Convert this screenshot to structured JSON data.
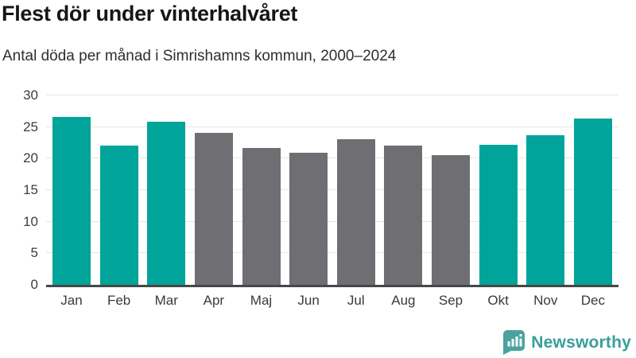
{
  "header": {
    "title": "Flest dör under vinterhalvåret",
    "subtitle": "Antal döda per månad i Simrishamns kommun, 2000–2024"
  },
  "chart_data": {
    "type": "bar",
    "title": "Flest dör under vinterhalvåret",
    "subtitle": "Antal döda per månad i Simrishamns kommun, 2000–2024",
    "categories": [
      "Jan",
      "Feb",
      "Mar",
      "Apr",
      "Maj",
      "Jun",
      "Jul",
      "Aug",
      "Sep",
      "Okt",
      "Nov",
      "Dec"
    ],
    "values": [
      26.6,
      22.1,
      25.8,
      24.1,
      21.7,
      20.9,
      23.1,
      22.1,
      20.5,
      22.2,
      23.7,
      26.3
    ],
    "bar_color_keys": [
      "teal",
      "teal",
      "teal",
      "gray",
      "gray",
      "gray",
      "gray",
      "gray",
      "gray",
      "teal",
      "teal",
      "teal"
    ],
    "xlabel": "",
    "ylabel": "",
    "ylim": [
      0,
      30
    ],
    "yticks": [
      0,
      5,
      10,
      15,
      20,
      25,
      30
    ],
    "grid": true,
    "legend": false
  },
  "colors": {
    "teal": "#00a49a",
    "gray": "#6e6e73",
    "gridline": "#e5e5e5",
    "axis_line": "#474747",
    "tick_label": "#3d3d3d",
    "title": "#161616",
    "subtitle": "#2e2e2e",
    "brand": "#399e99"
  },
  "footer": {
    "brand": "Newsworthy"
  }
}
